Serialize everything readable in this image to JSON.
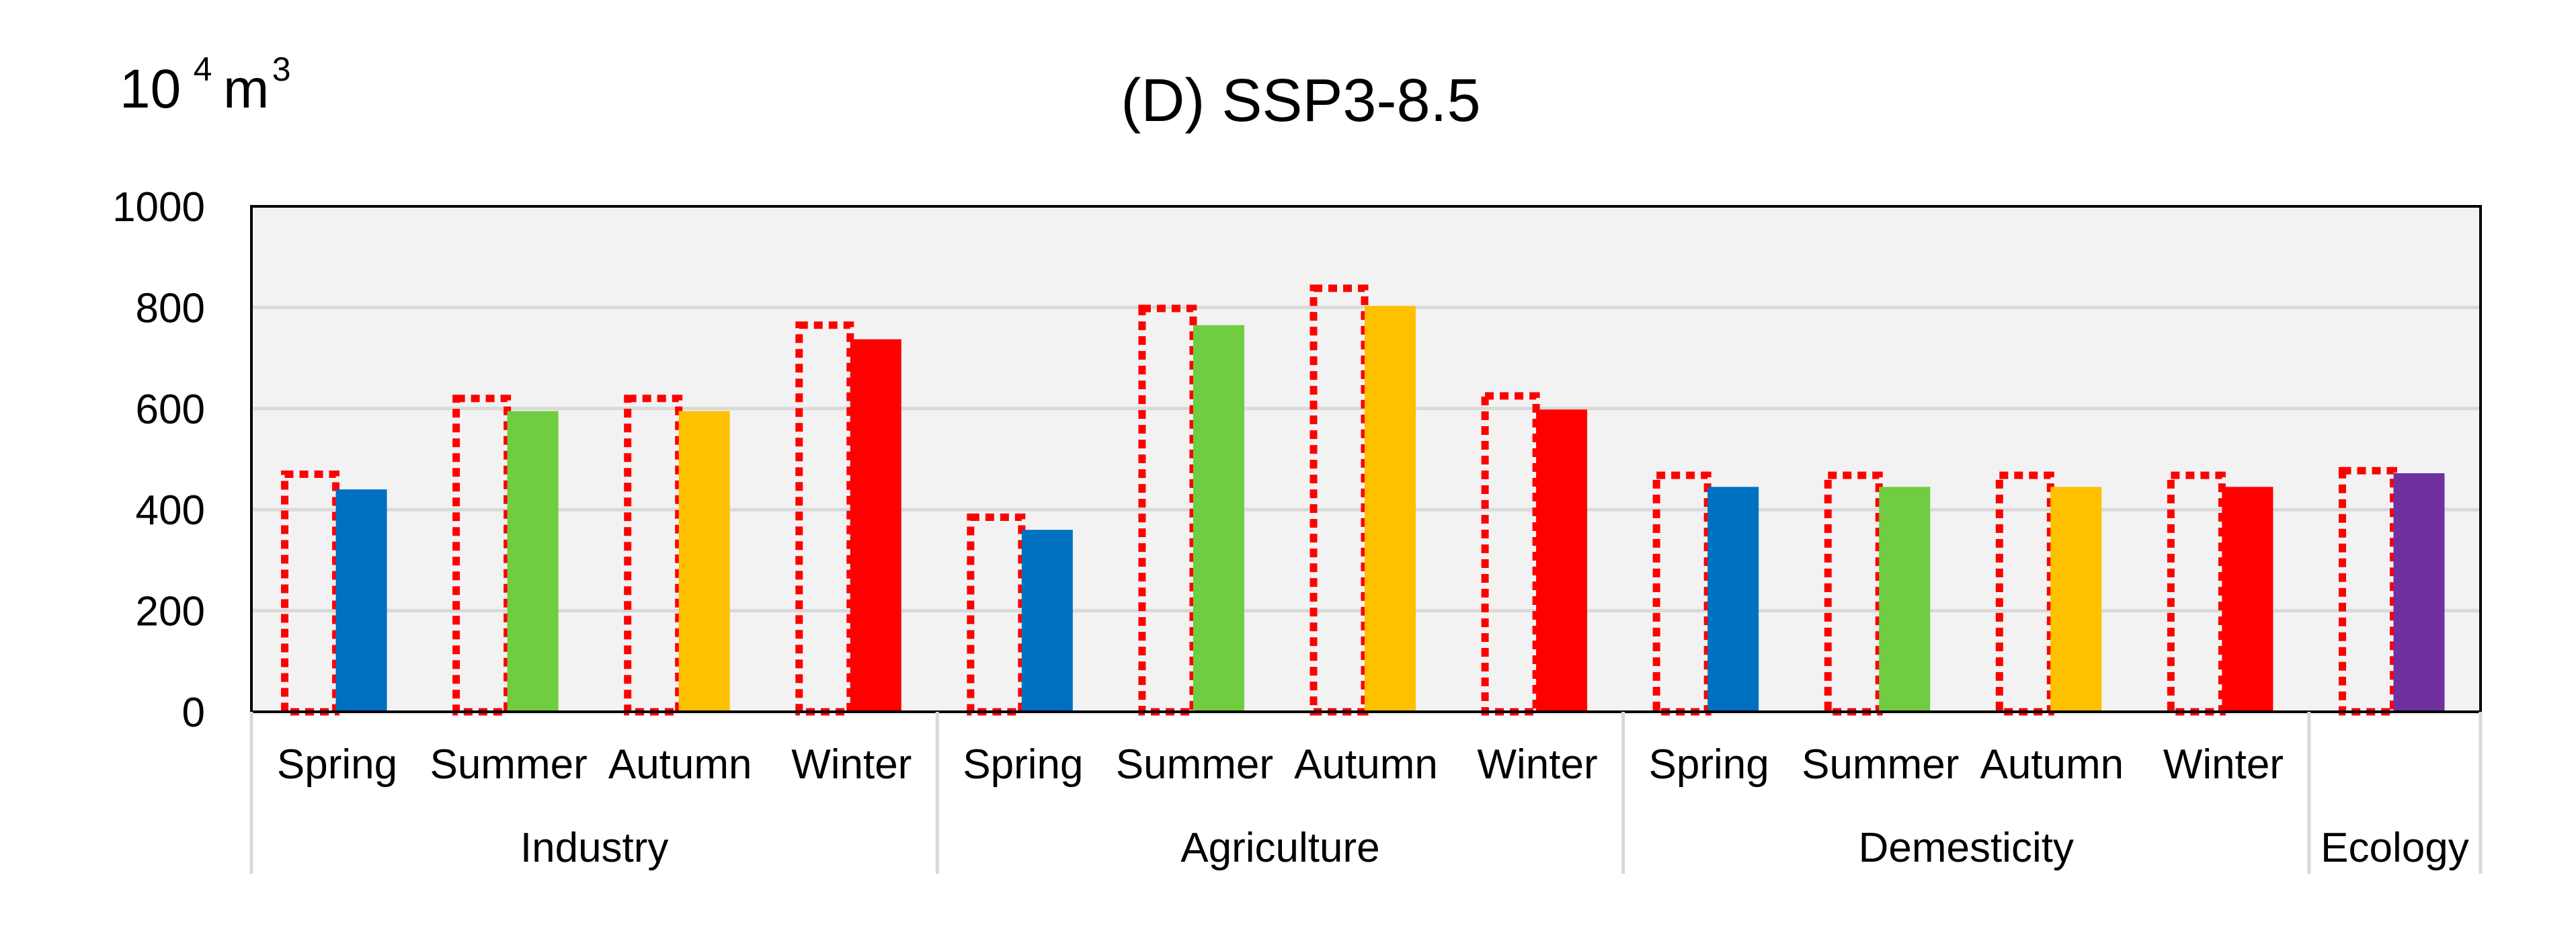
{
  "chart_data": {
    "type": "bar",
    "title": "(D) SSP3-8.5",
    "unit_base": "10",
    "unit_exp": "4",
    "unit_m": "m",
    "unit_m_exp": "3",
    "ylim": [
      0,
      1000
    ],
    "yticks": [
      "0",
      "200",
      "400",
      "600",
      "800",
      "1000"
    ],
    "grid": true,
    "groups": [
      {
        "name": "Industry",
        "categories": [
          {
            "label": "Spring",
            "outline": 470,
            "value": 440,
            "color": "#0070C0"
          },
          {
            "label": "Summer",
            "outline": 620,
            "value": 595,
            "color": "#70CC40"
          },
          {
            "label": "Autumn",
            "outline": 620,
            "value": 595,
            "color": "#FFC000"
          },
          {
            "label": "Winter",
            "outline": 765,
            "value": 737,
            "color": "#FF0000"
          }
        ]
      },
      {
        "name": "Agriculture",
        "categories": [
          {
            "label": "Spring",
            "outline": 385,
            "value": 360,
            "color": "#0070C0"
          },
          {
            "label": "Summer",
            "outline": 798,
            "value": 765,
            "color": "#70CC40"
          },
          {
            "label": "Autumn",
            "outline": 838,
            "value": 803,
            "color": "#FFC000"
          },
          {
            "label": "Winter",
            "outline": 625,
            "value": 598,
            "color": "#FF0000"
          }
        ]
      },
      {
        "name": "Demesticity",
        "categories": [
          {
            "label": "Spring",
            "outline": 468,
            "value": 445,
            "color": "#0070C0"
          },
          {
            "label": "Summer",
            "outline": 468,
            "value": 445,
            "color": "#70CC40"
          },
          {
            "label": "Autumn",
            "outline": 468,
            "value": 445,
            "color": "#FFC000"
          },
          {
            "label": "Winter",
            "outline": 468,
            "value": 445,
            "color": "#FF0000"
          }
        ]
      },
      {
        "name": "Ecology",
        "categories": [
          {
            "label": "",
            "outline": 477,
            "value": 472,
            "color": "#7030A0"
          }
        ]
      }
    ],
    "outline_color": "#FF0000",
    "plot_background": "#F2F2F2",
    "grid_color": "#D9D9D9"
  }
}
